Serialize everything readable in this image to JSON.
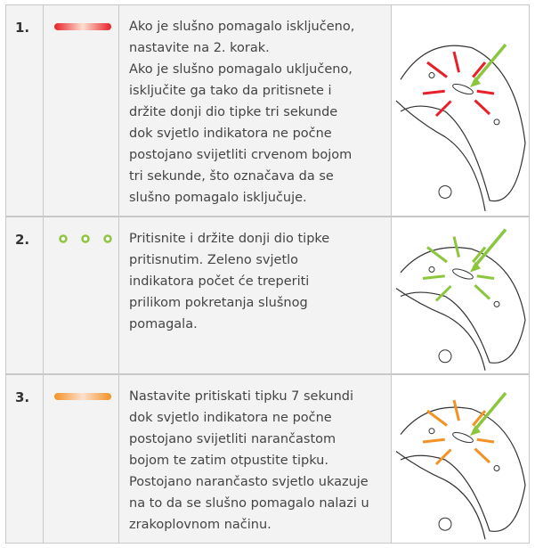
{
  "steps": [
    {
      "number": "1.",
      "lines": [
        "Ako je slušno pomagalo isključeno,",
        "nastavite na 2. korak.",
        "Ako je slušno pomagalo uključeno,",
        "isključite ga tako da pritisnete i",
        "držite donji dio tipke tri sekunde",
        "dok svjetlo indikatora ne počne",
        "postojano svijetliti crvenom bojom",
        "tri sekunde, što označava da se",
        "slušno pomagalo isključuje."
      ]
    },
    {
      "number": "2.",
      "lines": [
        "Pritisnite i držite donji dio tipke",
        "pritisnutim. Zeleno svjetlo",
        "indikatora počet će treperiti",
        "prilikom pokretanja slušnog",
        "pomagala."
      ]
    },
    {
      "number": "3.",
      "lines": [
        "Nastavite pritiskati tipku 7 sekundi",
        "dok svjetlo indikatora ne počne",
        "postojano svijetliti narančastom",
        "bojom te zatim otpustite tipku.",
        "Postojano narančasto svjetlo ukazuje",
        "na to da se slušno pomagalo nalazi u",
        "zrakoplovnom načinu."
      ]
    }
  ]
}
